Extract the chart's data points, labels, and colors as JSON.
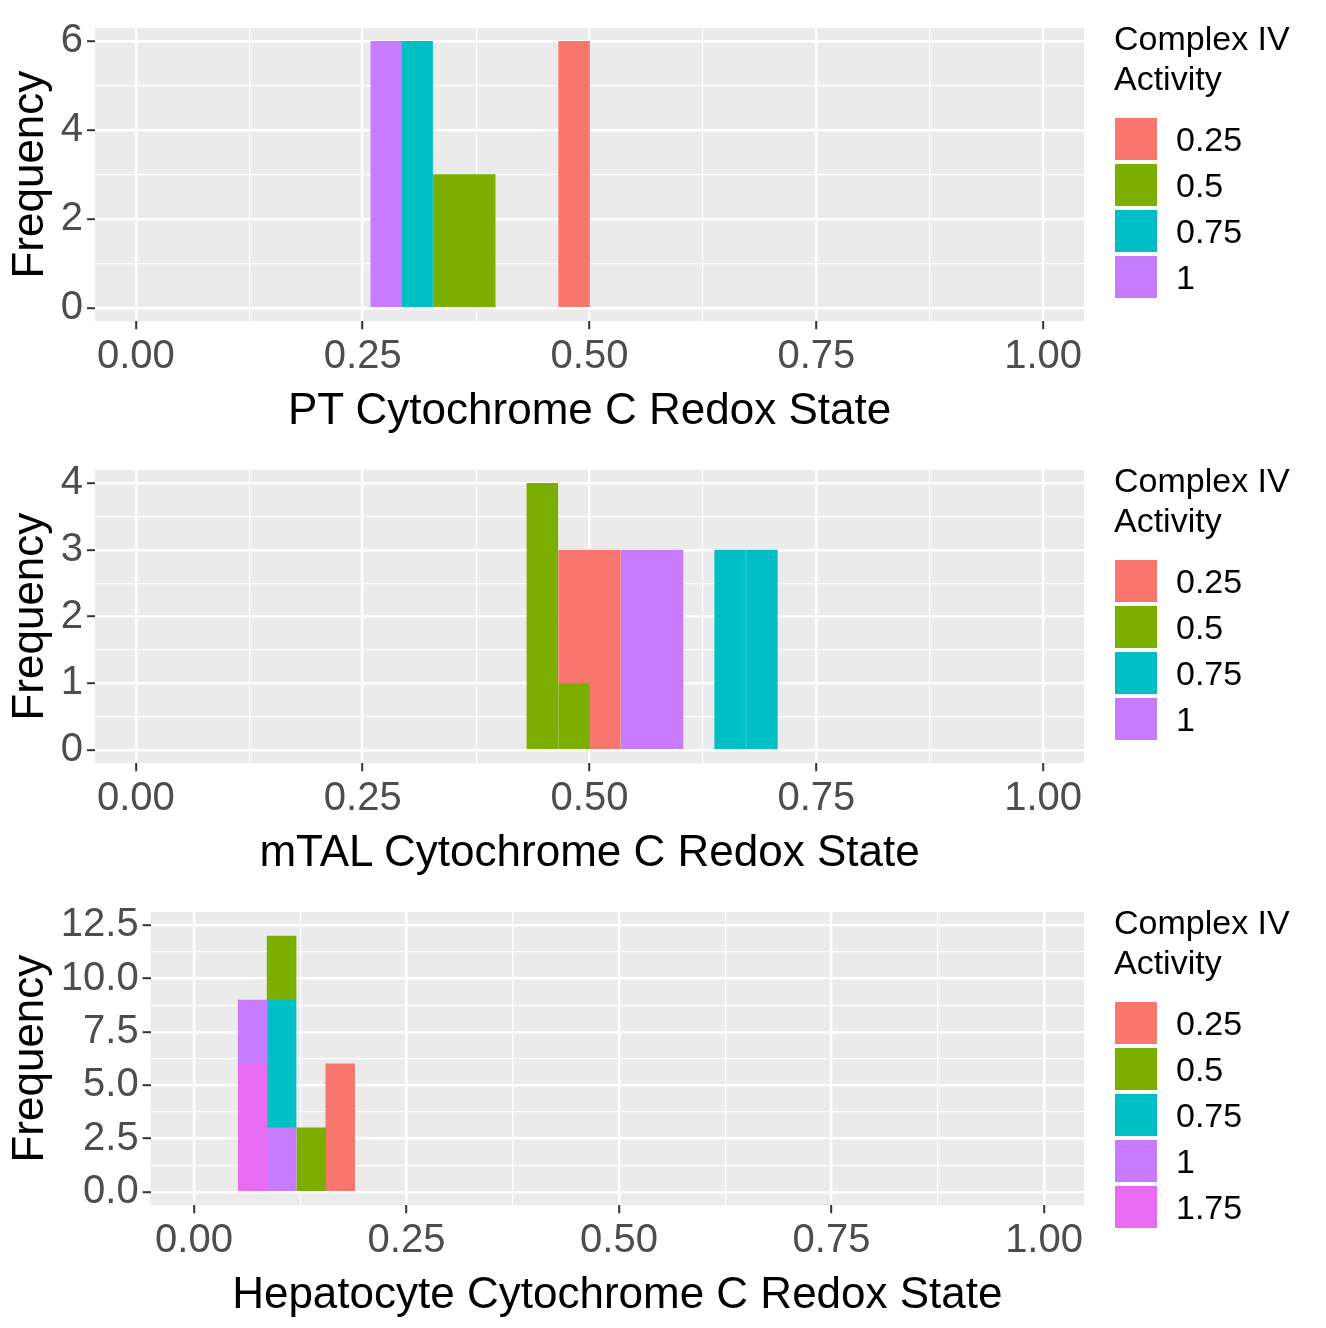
{
  "chart_data": [
    {
      "type": "bar",
      "xlabel": "PT Cytochrome C Redox State",
      "ylabel": "Frequency",
      "legend_title": "Complex IV Activity",
      "legend": "right",
      "stacked": true,
      "grid": true,
      "x": [
        0.034,
        0.069,
        0.103,
        0.138,
        0.172,
        0.207,
        0.241,
        0.276,
        0.31,
        0.345,
        0.379,
        0.414,
        0.448,
        0.483,
        0.517,
        0.552,
        0.586,
        0.621,
        0.655,
        0.69,
        0.724,
        0.759,
        0.793,
        0.828,
        0.862,
        0.897,
        0.931,
        0.966
      ],
      "xlim": [
        -0.045,
        1.045
      ],
      "xticks": [
        {
          "value": 0,
          "label": "0.00"
        },
        {
          "value": 0.125,
          "label": null
        },
        {
          "value": 0.25,
          "label": "0.25"
        },
        {
          "value": 0.375,
          "label": null
        },
        {
          "value": 0.5,
          "label": "0.50"
        },
        {
          "value": 0.625,
          "label": null
        },
        {
          "value": 0.75,
          "label": "0.75"
        },
        {
          "value": 0.875,
          "label": null
        },
        {
          "value": 1,
          "label": "1.00"
        }
      ],
      "ylim": [
        -0.3,
        6.3
      ],
      "yticks": [
        0,
        {
          "value": 1,
          "label": null
        },
        2,
        {
          "value": 3,
          "label": null
        },
        4,
        {
          "value": 5,
          "label": null
        },
        6
      ],
      "series": [
        {
          "name": "1",
          "color": "#c77cff",
          "values": [
            0,
            0,
            0,
            0,
            0,
            0,
            0,
            6,
            0,
            0,
            0,
            0,
            0,
            0,
            0,
            0,
            0,
            0,
            0,
            0,
            0,
            0,
            0,
            0,
            0,
            0,
            0,
            0
          ]
        },
        {
          "name": "0.75",
          "color": "#00bfc4",
          "values": [
            0,
            0,
            0,
            0,
            0,
            0,
            0,
            0,
            6,
            0,
            0,
            0,
            0,
            0,
            0,
            0,
            0,
            0,
            0,
            0,
            0,
            0,
            0,
            0,
            0,
            0,
            0,
            0
          ]
        },
        {
          "name": "0.5",
          "color": "#7cae00",
          "values": [
            0,
            0,
            0,
            0,
            0,
            0,
            0,
            0,
            0,
            3,
            3,
            0,
            0,
            0,
            0,
            0,
            0,
            0,
            0,
            0,
            0,
            0,
            0,
            0,
            0,
            0,
            0,
            0
          ]
        },
        {
          "name": "0.25",
          "color": "#f8766d",
          "values": [
            0,
            0,
            0,
            0,
            0,
            0,
            0,
            0,
            0,
            0,
            0,
            0,
            0,
            6,
            0,
            0,
            0,
            0,
            0,
            0,
            0,
            0,
            0,
            0,
            0,
            0,
            0,
            0
          ]
        }
      ]
    },
    {
      "type": "bar",
      "xlabel": "mTAL Cytochrome C Redox State",
      "ylabel": "Frequency",
      "legend_title": "Complex IV Activity",
      "legend": "right",
      "stacked": true,
      "grid": true,
      "x": [
        0.034,
        0.069,
        0.103,
        0.138,
        0.172,
        0.207,
        0.241,
        0.276,
        0.31,
        0.345,
        0.379,
        0.414,
        0.448,
        0.483,
        0.517,
        0.552,
        0.586,
        0.621,
        0.655,
        0.69,
        0.724,
        0.759,
        0.793,
        0.828,
        0.862,
        0.897,
        0.931,
        0.966
      ],
      "xlim": [
        -0.045,
        1.045
      ],
      "xticks": [
        {
          "value": 0,
          "label": "0.00"
        },
        {
          "value": 0.125,
          "label": null
        },
        {
          "value": 0.25,
          "label": "0.25"
        },
        {
          "value": 0.375,
          "label": null
        },
        {
          "value": 0.5,
          "label": "0.50"
        },
        {
          "value": 0.625,
          "label": null
        },
        {
          "value": 0.75,
          "label": "0.75"
        },
        {
          "value": 0.875,
          "label": null
        },
        {
          "value": 1,
          "label": "1.00"
        }
      ],
      "ylim": [
        -0.2,
        4.2
      ],
      "yticks": [
        0,
        {
          "value": 0.5,
          "label": null
        },
        1,
        {
          "value": 1.5,
          "label": null
        },
        2,
        {
          "value": 2.5,
          "label": null
        },
        3,
        {
          "value": 3.5,
          "label": null
        },
        4
      ],
      "series": [
        {
          "name": "1",
          "color": "#c77cff",
          "values": [
            0,
            0,
            0,
            0,
            0,
            0,
            0,
            0,
            0,
            0,
            0,
            0,
            0,
            0,
            0,
            3,
            3,
            0,
            0,
            0,
            0,
            0,
            0,
            0,
            0,
            0,
            0,
            0
          ]
        },
        {
          "name": "0.75",
          "color": "#00bfc4",
          "values": [
            0,
            0,
            0,
            0,
            0,
            0,
            0,
            0,
            0,
            0,
            0,
            0,
            0,
            0,
            0,
            0,
            0,
            0,
            3,
            3,
            0,
            0,
            0,
            0,
            0,
            0,
            0,
            0
          ]
        },
        {
          "name": "0.5",
          "color": "#7cae00",
          "values": [
            0,
            0,
            0,
            0,
            0,
            0,
            0,
            0,
            0,
            0,
            0,
            0,
            4,
            1,
            0,
            0,
            0,
            0,
            0,
            0,
            0,
            0,
            0,
            0,
            0,
            0,
            0,
            0
          ]
        },
        {
          "name": "0.25",
          "color": "#f8766d",
          "values": [
            0,
            0,
            0,
            0,
            0,
            0,
            0,
            0,
            0,
            0,
            0,
            0,
            0,
            2,
            3,
            0,
            0,
            0,
            0,
            0,
            0,
            0,
            0,
            0,
            0,
            0,
            0,
            0
          ]
        }
      ]
    },
    {
      "type": "bar",
      "xlabel": "Hepatocyte Cytochrome C Redox State",
      "ylabel": "Frequency",
      "legend_title": "Complex IV Activity",
      "legend": "right",
      "stacked": true,
      "grid": true,
      "x": [
        0.034,
        0.069,
        0.103,
        0.138,
        0.172,
        0.207,
        0.241,
        0.276,
        0.31,
        0.345,
        0.379,
        0.414,
        0.448,
        0.483,
        0.517,
        0.552,
        0.586,
        0.621,
        0.655,
        0.69,
        0.724,
        0.759,
        0.793,
        0.828,
        0.862,
        0.897,
        0.931,
        0.966
      ],
      "xlim": [
        -0.051,
        1.047
      ],
      "xticks": [
        {
          "value": 0,
          "label": "0.00"
        },
        {
          "value": 0.125,
          "label": null
        },
        {
          "value": 0.25,
          "label": "0.25"
        },
        {
          "value": 0.375,
          "label": null
        },
        {
          "value": 0.5,
          "label": "0.50"
        },
        {
          "value": 0.625,
          "label": null
        },
        {
          "value": 0.75,
          "label": "0.75"
        },
        {
          "value": 0.875,
          "label": null
        },
        {
          "value": 1,
          "label": "1.00"
        }
      ],
      "ylim": [
        -0.625,
        13.125
      ],
      "yticks": [
        {
          "value": 0,
          "label": "0.0"
        },
        {
          "value": 1.25,
          "label": null
        },
        2.5,
        {
          "value": 3.75,
          "label": null
        },
        {
          "value": 5,
          "label": "5.0"
        },
        {
          "value": 6.25,
          "label": null
        },
        7.5,
        {
          "value": 8.75,
          "label": null
        },
        {
          "value": 10,
          "label": "10.0"
        },
        {
          "value": 11.25,
          "label": null
        },
        12.5
      ],
      "series": [
        {
          "name": "1.75",
          "color": "#e76bf3",
          "values": [
            0,
            6,
            0,
            0,
            0,
            0,
            0,
            0,
            0,
            0,
            0,
            0,
            0,
            0,
            0,
            0,
            0,
            0,
            0,
            0,
            0,
            0,
            0,
            0,
            0,
            0,
            0,
            0
          ]
        },
        {
          "name": "1",
          "color": "#c77cff",
          "values": [
            0,
            3,
            3,
            0,
            0,
            0,
            0,
            0,
            0,
            0,
            0,
            0,
            0,
            0,
            0,
            0,
            0,
            0,
            0,
            0,
            0,
            0,
            0,
            0,
            0,
            0,
            0,
            0
          ]
        },
        {
          "name": "0.75",
          "color": "#00bfc4",
          "values": [
            0,
            0,
            6,
            0,
            0,
            0,
            0,
            0,
            0,
            0,
            0,
            0,
            0,
            0,
            0,
            0,
            0,
            0,
            0,
            0,
            0,
            0,
            0,
            0,
            0,
            0,
            0,
            0
          ]
        },
        {
          "name": "0.5",
          "color": "#7cae00",
          "values": [
            0,
            0,
            3,
            3,
            0,
            0,
            0,
            0,
            0,
            0,
            0,
            0,
            0,
            0,
            0,
            0,
            0,
            0,
            0,
            0,
            0,
            0,
            0,
            0,
            0,
            0,
            0,
            0
          ]
        },
        {
          "name": "0.25",
          "color": "#f8766d",
          "values": [
            0,
            0,
            0,
            0,
            6,
            0,
            0,
            0,
            0,
            0,
            0,
            0,
            0,
            0,
            0,
            0,
            0,
            0,
            0,
            0,
            0,
            0,
            0,
            0,
            0,
            0,
            0,
            0
          ]
        }
      ]
    }
  ]
}
